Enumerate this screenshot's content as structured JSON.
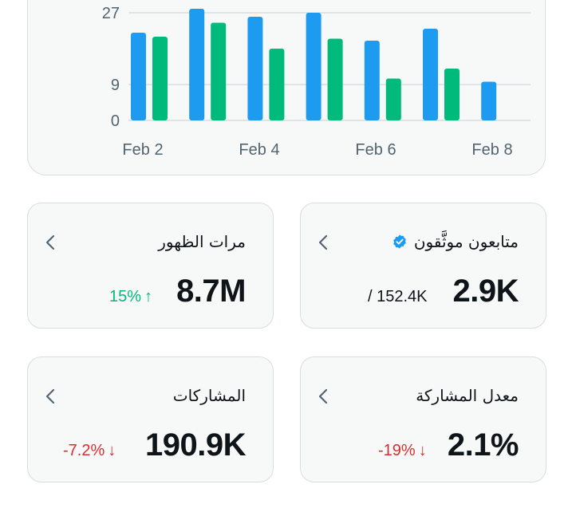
{
  "chart_data": {
    "type": "bar",
    "x_tick_labels": [
      "Feb 2",
      "Feb 4",
      "Feb 6",
      "Feb 8"
    ],
    "y_tick_labels": [
      "27",
      "9",
      "0"
    ],
    "y_ticks": [
      27,
      9,
      0
    ],
    "ylim": [
      0,
      28
    ],
    "series": [
      {
        "color": "#1d9bf0",
        "values": [
          22,
          28,
          26,
          27,
          20,
          23,
          9.7
        ]
      },
      {
        "color": "#00ba7c",
        "values": [
          21,
          24.5,
          18,
          20.5,
          10.5,
          13,
          null
        ]
      }
    ],
    "grid": true
  },
  "cards": {
    "verified_followers": {
      "title": "متابعون موثَّقون",
      "value": "2.9K",
      "sub": "/ 152.4K"
    },
    "impressions": {
      "title": "مرات الظهور",
      "value": "8.7M",
      "change": "15%",
      "arrow": "↑"
    },
    "engagement_rate": {
      "title": "معدل المشاركة",
      "value": "2.1%",
      "change": "-19%",
      "arrow": "↓"
    },
    "engagements": {
      "title": "المشاركات",
      "value": "190.9K",
      "change": "-7.2%",
      "arrow": "↓"
    }
  },
  "colors": {
    "accent_blue": "#1d9bf0",
    "accent_green": "#00ba7c",
    "negative_red": "#d32f2f"
  },
  "icons": {
    "chevron": "chevron-left-icon",
    "verified": "verified-badge-icon"
  }
}
